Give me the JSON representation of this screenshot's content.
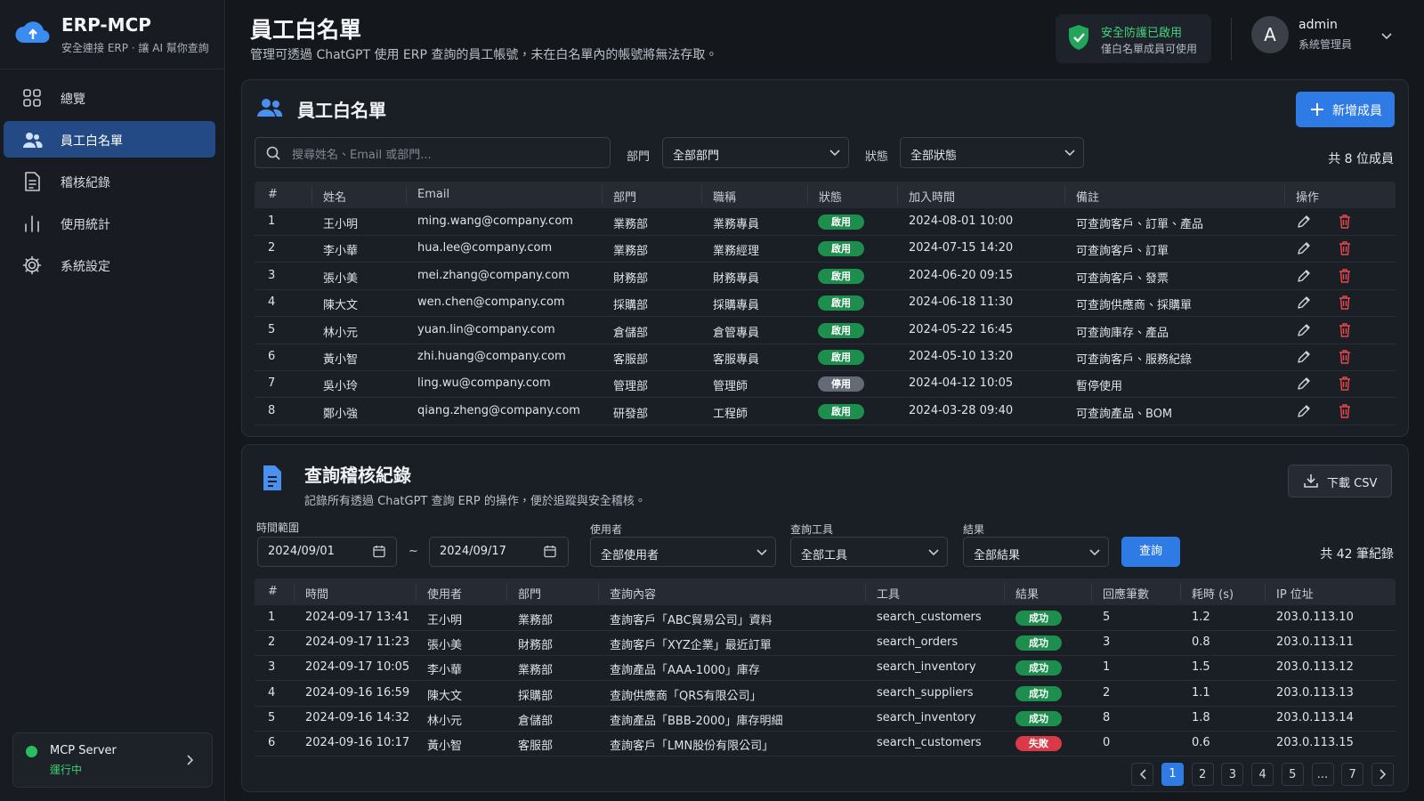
{
  "sidebar": {
    "brand": "ERP-MCP",
    "tagline": "安全連接 ERP · 讓 AI 幫你查詢",
    "nav": [
      "總覽",
      "員工白名單",
      "稽核紀錄",
      "使用統計",
      "系統設定"
    ],
    "server": {
      "name": "MCP Server",
      "status": "運行中"
    }
  },
  "header": {
    "title": "員工白名單",
    "subtitle": "管理可透過 ChatGPT 使用 ERP 查詢的員工帳號，未在白名單內的帳號將無法存取。",
    "security": {
      "title": "安全防護已啟用",
      "note": "僅白名單成員可使用"
    },
    "user": {
      "avatar": "A",
      "name": "admin",
      "role": "系統管理員"
    }
  },
  "whitelist": {
    "title": "員工白名單",
    "add_button": "新增成員",
    "search_placeholder": "搜尋姓名、Email 或部門...",
    "filters": [
      {
        "label": "部門",
        "value": "全部部門"
      },
      {
        "label": "狀態",
        "value": "全部狀態"
      }
    ],
    "count": "共 8 位成員",
    "columns": [
      "#",
      "姓名",
      "Email",
      "部門",
      "職稱",
      "狀態",
      "加入時間",
      "備註",
      "操作"
    ],
    "status_colors": {
      "啟用": "#1e8e4e",
      "停用": "#646b76"
    },
    "rows": [
      [
        "1",
        "王小明",
        "ming.wang@company.com",
        "業務部",
        "業務專員",
        "啟用",
        "2024-08-01 10:00",
        "可查詢客戶、訂單、產品"
      ],
      [
        "2",
        "李小華",
        "hua.lee@company.com",
        "業務部",
        "業務經理",
        "啟用",
        "2024-07-15 14:20",
        "可查詢客戶、訂單"
      ],
      [
        "3",
        "張小美",
        "mei.zhang@company.com",
        "財務部",
        "財務專員",
        "啟用",
        "2024-06-20 09:15",
        "可查詢客戶、發票"
      ],
      [
        "4",
        "陳大文",
        "wen.chen@company.com",
        "採購部",
        "採購專員",
        "啟用",
        "2024-06-18 11:30",
        "可查詢供應商、採購單"
      ],
      [
        "5",
        "林小元",
        "yuan.lin@company.com",
        "倉儲部",
        "倉管專員",
        "啟用",
        "2024-05-22 16:45",
        "可查詢庫存、產品"
      ],
      [
        "6",
        "黃小智",
        "zhi.huang@company.com",
        "客服部",
        "客服專員",
        "啟用",
        "2024-05-10 13:20",
        "可查詢客戶、服務紀錄"
      ],
      [
        "7",
        "吳小玲",
        "ling.wu@company.com",
        "管理部",
        "管理師",
        "停用",
        "2024-04-12 10:05",
        "暫停使用"
      ],
      [
        "8",
        "鄭小強",
        "qiang.zheng@company.com",
        "研發部",
        "工程師",
        "啟用",
        "2024-03-28 09:40",
        "可查詢產品、BOM"
      ]
    ]
  },
  "audit": {
    "title": "查詢稽核紀錄",
    "subtitle": "記錄所有透過 ChatGPT 查詢 ERP 的操作，便於追蹤與安全稽核。",
    "download_button": "下載 CSV",
    "time_range": {
      "label": "時間範圍",
      "from": "2024/09/01",
      "separator": "~",
      "to": "2024/09/17"
    },
    "filters": [
      {
        "label": "使用者",
        "value": "全部使用者"
      },
      {
        "label": "查詢工具",
        "value": "全部工具"
      },
      {
        "label": "結果",
        "value": "全部結果"
      }
    ],
    "query_button": "查詢",
    "count": "共 42 筆紀錄",
    "columns": [
      "#",
      "時間",
      "使用者",
      "部門",
      "查詢內容",
      "工具",
      "結果",
      "回應筆數",
      "耗時 (s)",
      "IP 位址"
    ],
    "result_colors": {
      "成功": "#1e8e4e",
      "失敗": "#d93a47"
    },
    "rows": [
      [
        "1",
        "2024-09-17 13:41",
        "王小明",
        "業務部",
        "查詢客戶「ABC貿易公司」資料",
        "search_customers",
        "成功",
        "5",
        "1.2",
        "203.0.113.10"
      ],
      [
        "2",
        "2024-09-17 11:23",
        "張小美",
        "財務部",
        "查詢客戶「XYZ企業」最近訂單",
        "search_orders",
        "成功",
        "3",
        "0.8",
        "203.0.113.11"
      ],
      [
        "3",
        "2024-09-17 10:05",
        "李小華",
        "業務部",
        "查詢產品「AAA-1000」庫存",
        "search_inventory",
        "成功",
        "1",
        "1.5",
        "203.0.113.12"
      ],
      [
        "4",
        "2024-09-16 16:59",
        "陳大文",
        "採購部",
        "查詢供應商「QRS有限公司」",
        "search_suppliers",
        "成功",
        "2",
        "1.1",
        "203.0.113.13"
      ],
      [
        "5",
        "2024-09-16 14:32",
        "林小元",
        "倉儲部",
        "查詢產品「BBB-2000」庫存明細",
        "search_inventory",
        "成功",
        "8",
        "1.8",
        "203.0.113.14"
      ],
      [
        "6",
        "2024-09-16 10:17",
        "黃小智",
        "客服部",
        "查詢客戶「LMN股份有限公司」",
        "search_customers",
        "失敗",
        "0",
        "0.6",
        "203.0.113.15"
      ]
    ],
    "pagination": {
      "pages": [
        "1",
        "2",
        "3",
        "4",
        "5",
        "...",
        "7"
      ],
      "current": 0
    }
  }
}
